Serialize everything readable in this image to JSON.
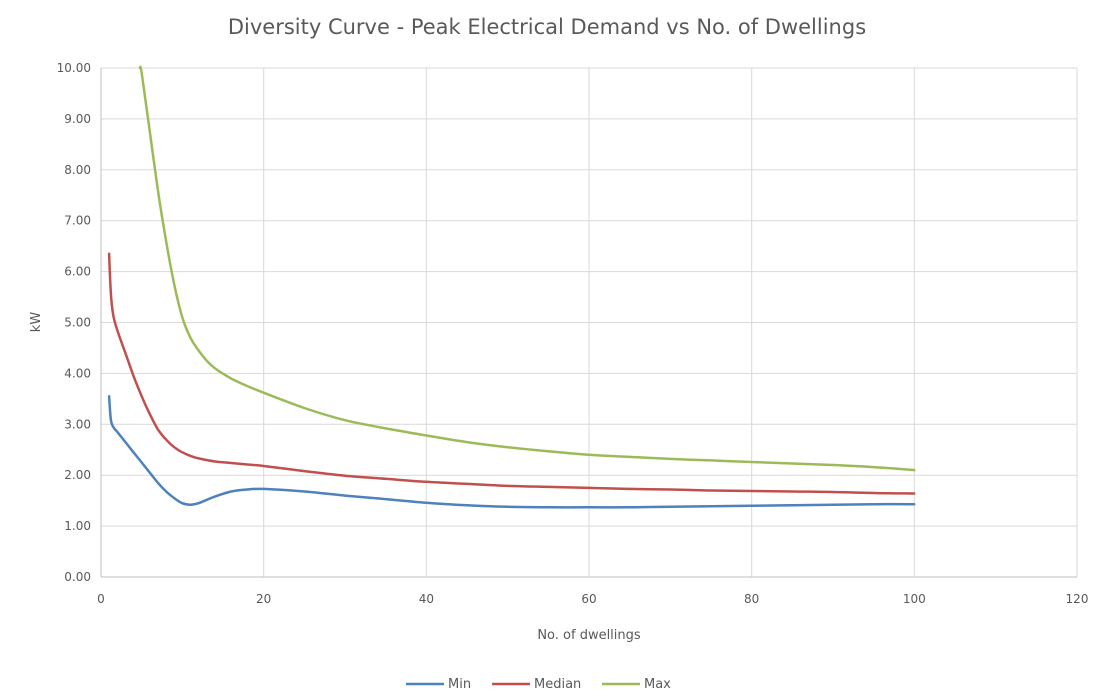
{
  "chart_data": {
    "type": "line",
    "title": "Diversity Curve - Peak Electrical Demand vs No. of Dwellings",
    "xlabel": "No. of dwellings",
    "ylabel": "kW",
    "xlim": [
      0,
      120
    ],
    "ylim": [
      0,
      10
    ],
    "x_ticks": [
      "0",
      "20",
      "40",
      "60",
      "80",
      "100",
      "120"
    ],
    "x_tick_values": [
      0,
      20,
      40,
      60,
      80,
      100,
      120
    ],
    "y_ticks": [
      "0.00",
      "1.00",
      "2.00",
      "3.00",
      "4.00",
      "5.00",
      "6.00",
      "7.00",
      "8.00",
      "9.00",
      "10.00"
    ],
    "y_tick_values": [
      0,
      1,
      2,
      3,
      4,
      5,
      6,
      7,
      8,
      9,
      10
    ],
    "grid": true,
    "legend_position": "bottom",
    "series": [
      {
        "name": "Min",
        "color": "#4f81bd",
        "x": [
          1,
          1.2,
          1.5,
          2,
          3,
          4,
          5,
          6,
          7,
          8,
          9,
          10,
          11,
          12,
          14,
          16,
          18,
          20,
          25,
          30,
          35,
          40,
          45,
          50,
          55,
          60,
          65,
          70,
          75,
          80,
          85,
          90,
          95,
          100
        ],
        "y": [
          3.55,
          3.1,
          2.95,
          2.85,
          2.65,
          2.45,
          2.25,
          2.05,
          1.85,
          1.68,
          1.55,
          1.45,
          1.42,
          1.45,
          1.58,
          1.68,
          1.72,
          1.73,
          1.68,
          1.6,
          1.53,
          1.46,
          1.41,
          1.38,
          1.37,
          1.37,
          1.37,
          1.38,
          1.39,
          1.4,
          1.41,
          1.42,
          1.43,
          1.43
        ]
      },
      {
        "name": "Median",
        "color": "#c0504d",
        "x": [
          1,
          1.2,
          1.5,
          2,
          3,
          4,
          5,
          6,
          7,
          8,
          9,
          10,
          11,
          12,
          14,
          16,
          18,
          20,
          25,
          30,
          35,
          40,
          45,
          50,
          55,
          60,
          65,
          70,
          75,
          80,
          85,
          90,
          95,
          100
        ],
        "y": [
          6.35,
          5.6,
          5.15,
          4.85,
          4.4,
          3.95,
          3.55,
          3.2,
          2.9,
          2.7,
          2.55,
          2.45,
          2.38,
          2.33,
          2.27,
          2.24,
          2.21,
          2.18,
          2.08,
          1.99,
          1.93,
          1.87,
          1.83,
          1.79,
          1.77,
          1.75,
          1.73,
          1.72,
          1.7,
          1.69,
          1.68,
          1.67,
          1.65,
          1.64
        ]
      },
      {
        "name": "Max",
        "color": "#9bbb59",
        "x": [
          4.8,
          5,
          6,
          7,
          8,
          9,
          10,
          11,
          12,
          13,
          14,
          16,
          18,
          20,
          25,
          30,
          35,
          40,
          45,
          50,
          55,
          60,
          65,
          70,
          75,
          80,
          85,
          90,
          95,
          100
        ],
        "y": [
          10.0,
          9.9,
          8.75,
          7.6,
          6.6,
          5.75,
          5.1,
          4.7,
          4.45,
          4.25,
          4.1,
          3.9,
          3.75,
          3.62,
          3.32,
          3.08,
          2.92,
          2.78,
          2.65,
          2.55,
          2.47,
          2.4,
          2.36,
          2.32,
          2.29,
          2.26,
          2.23,
          2.2,
          2.16,
          2.1
        ]
      }
    ]
  }
}
